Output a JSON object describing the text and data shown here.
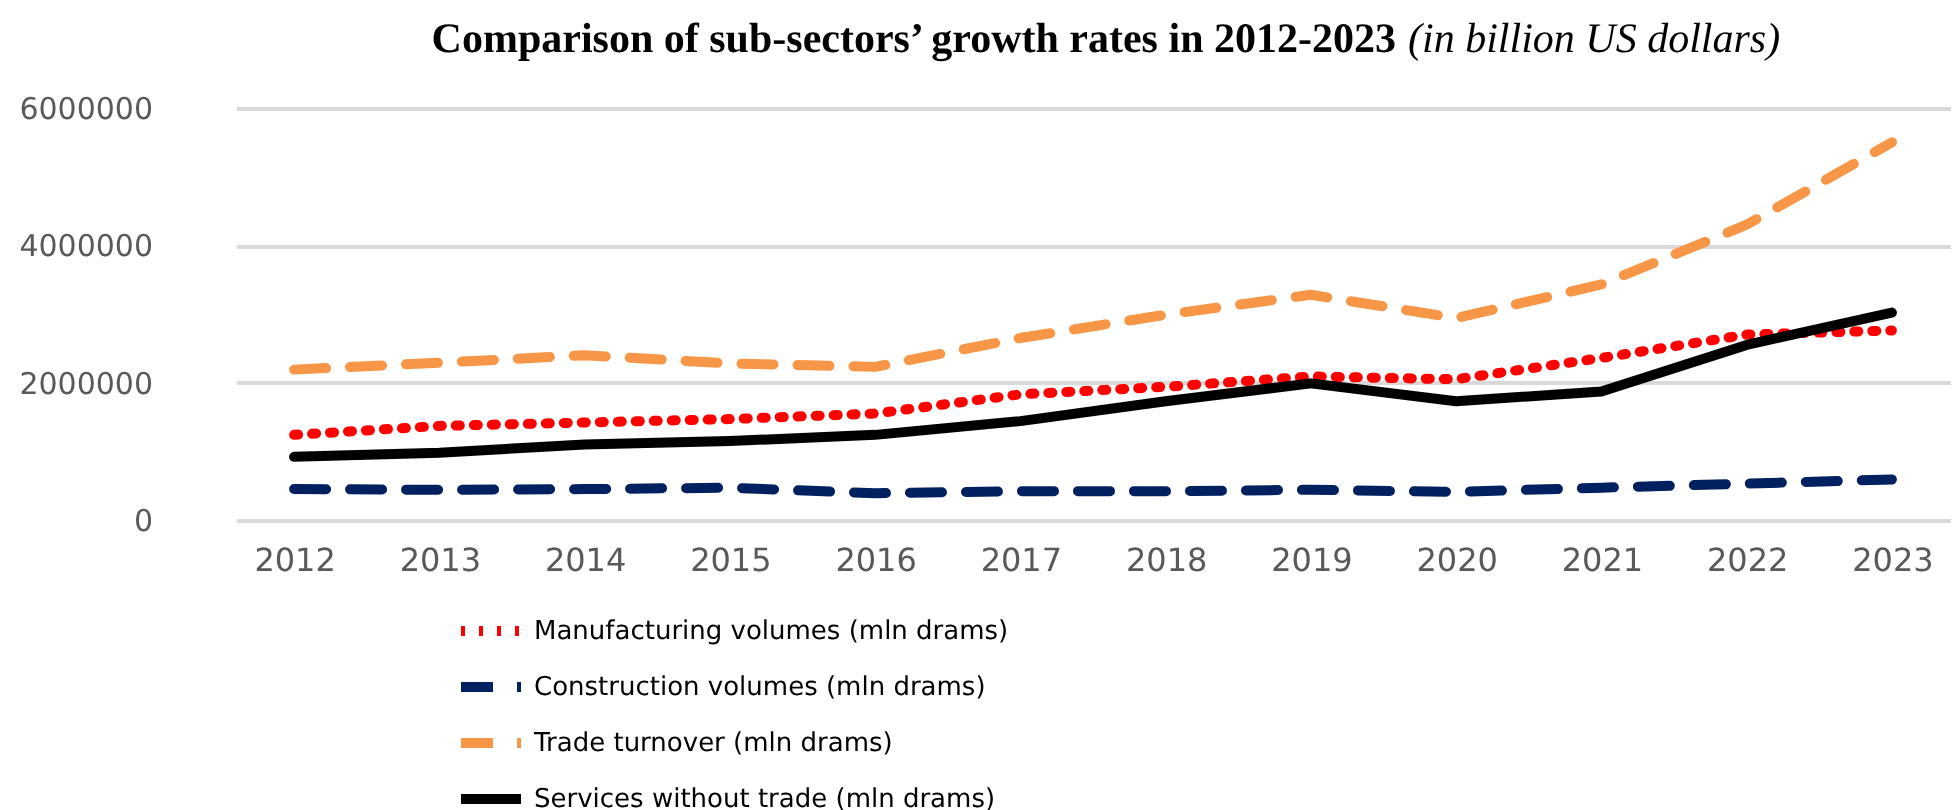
{
  "chart_data": {
    "type": "line",
    "title": "Comparison of sub-sectors’ growth rates in 2012-2023",
    "subtitle": "(in billion US dollars)",
    "categories": [
      "2012",
      "2013",
      "2014",
      "2015",
      "2016",
      "2017",
      "2018",
      "2019",
      "2020",
      "2021",
      "2022",
      "2023"
    ],
    "series": [
      {
        "name": "Manufacturing volumes (mln drams)",
        "color": "#ff0000",
        "line_style": "dotted",
        "values": [
          1240000,
          1370000,
          1420000,
          1470000,
          1550000,
          1830000,
          1940000,
          2090000,
          2050000,
          2360000,
          2700000,
          2760000
        ]
      },
      {
        "name": "Construction volumes (mln drams)",
        "color": "#002060",
        "line_style": "dashed",
        "values": [
          450000,
          440000,
          450000,
          470000,
          390000,
          420000,
          420000,
          440000,
          410000,
          470000,
          530000,
          590000
        ]
      },
      {
        "name": "Trade turnover (mln drams)",
        "color": "#f79646",
        "line_style": "dashed",
        "values": [
          2190000,
          2290000,
          2400000,
          2280000,
          2230000,
          2650000,
          2990000,
          3280000,
          2940000,
          3430000,
          4300000,
          5500000
        ]
      },
      {
        "name": "Services without trade (mln drams)",
        "color": "#000000",
        "line_style": "solid",
        "values": [
          920000,
          980000,
          1100000,
          1150000,
          1240000,
          1440000,
          1730000,
          1990000,
          1730000,
          1870000,
          2550000,
          3020000
        ]
      }
    ],
    "ylim": [
      0,
      6000000
    ],
    "yticks": [
      0,
      2000000,
      4000000,
      6000000
    ],
    "grid": "y",
    "legend": "bottom",
    "marker": "none"
  }
}
